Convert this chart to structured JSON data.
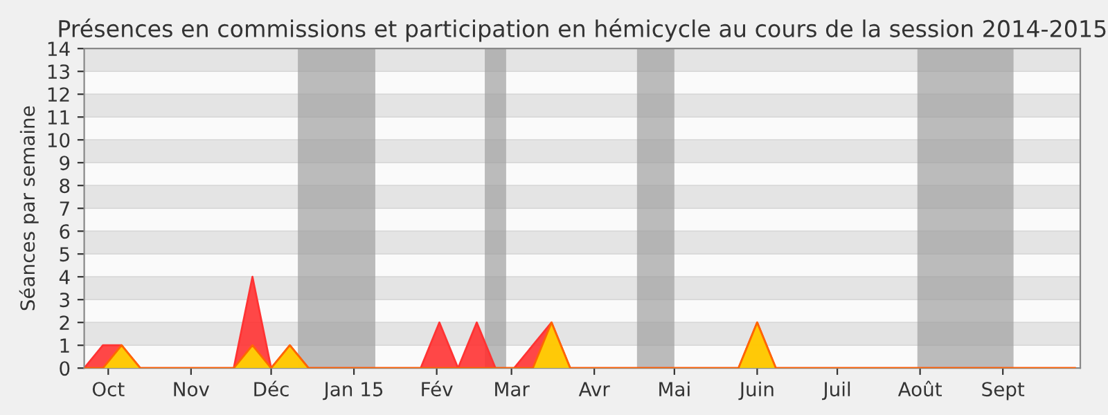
{
  "chart_data": {
    "type": "area",
    "title": "Présences en commissions et participation en hémicycle au cours de la session 2014-2015",
    "ylabel": "Séances par semaine",
    "x": [
      "2014-09-22",
      "2014-09-29",
      "2014-10-06",
      "2014-10-13",
      "2014-10-20",
      "2014-10-27",
      "2014-11-03",
      "2014-11-10",
      "2014-11-17",
      "2014-11-24",
      "2014-12-01",
      "2014-12-08",
      "2014-12-15",
      "2014-12-22",
      "2014-12-29",
      "2015-01-05",
      "2015-01-12",
      "2015-01-19",
      "2015-01-26",
      "2015-02-02",
      "2015-02-09",
      "2015-02-16",
      "2015-02-23",
      "2015-03-02",
      "2015-03-09",
      "2015-03-16",
      "2015-03-23",
      "2015-03-30",
      "2015-04-06",
      "2015-04-13",
      "2015-04-20",
      "2015-04-27",
      "2015-05-04",
      "2015-05-11",
      "2015-05-18",
      "2015-05-25",
      "2015-06-01",
      "2015-06-08",
      "2015-06-15",
      "2015-06-22",
      "2015-06-29",
      "2015-07-06",
      "2015-07-13",
      "2015-07-20",
      "2015-07-27",
      "2015-08-03",
      "2015-08-10",
      "2015-08-17",
      "2015-08-24",
      "2015-08-31",
      "2015-09-07",
      "2015-09-14",
      "2015-09-21",
      "2015-09-28"
    ],
    "series": [
      {
        "color": "#ff3333",
        "values": [
          0,
          1,
          1,
          0,
          0,
          0,
          0,
          0,
          0,
          4,
          0,
          1,
          0,
          0,
          0,
          0,
          0,
          0,
          0,
          2,
          0,
          2,
          0,
          0,
          1,
          2,
          0,
          0,
          0,
          0,
          0,
          0,
          0,
          0,
          0,
          0,
          2,
          0,
          0,
          0,
          0,
          0,
          0,
          0,
          0,
          0,
          0,
          0,
          0,
          0,
          0,
          0,
          0,
          0
        ]
      },
      {
        "color": "#ffd700",
        "values": [
          0,
          0,
          1,
          0,
          0,
          0,
          0,
          0,
          0,
          1,
          0,
          1,
          0,
          0,
          0,
          0,
          0,
          0,
          0,
          0,
          0,
          0,
          0,
          0,
          0,
          2,
          0,
          0,
          0,
          0,
          0,
          0,
          0,
          0,
          0,
          0,
          2,
          0,
          0,
          0,
          0,
          0,
          0,
          0,
          0,
          0,
          0,
          0,
          0,
          0,
          0,
          0,
          0,
          0
        ]
      }
    ],
    "xlim": [
      "2014-09-22",
      "2015-09-30"
    ],
    "ylim": [
      0,
      14
    ],
    "yticks": [
      0,
      1,
      2,
      3,
      4,
      5,
      6,
      7,
      8,
      9,
      10,
      11,
      12,
      13,
      14
    ],
    "xticks": [
      {
        "value": "2014-10-01",
        "label": "Oct"
      },
      {
        "value": "2014-11-01",
        "label": "Nov"
      },
      {
        "value": "2014-12-01",
        "label": "Déc"
      },
      {
        "value": "2015-01-01",
        "label": "Jan 15"
      },
      {
        "value": "2015-02-01",
        "label": "Fév"
      },
      {
        "value": "2015-03-01",
        "label": "Mar"
      },
      {
        "value": "2015-04-01",
        "label": "Avr"
      },
      {
        "value": "2015-05-01",
        "label": "Mai"
      },
      {
        "value": "2015-06-01",
        "label": "Juin"
      },
      {
        "value": "2015-07-01",
        "label": "Juil"
      },
      {
        "value": "2015-08-01",
        "label": "Août"
      },
      {
        "value": "2015-09-01",
        "label": "Sept"
      }
    ],
    "bands": [
      {
        "axis": "x",
        "from": "2014-12-11",
        "to": "2015-01-09",
        "color": "#a0a0a0"
      },
      {
        "axis": "x",
        "from": "2015-02-19",
        "to": "2015-02-27",
        "color": "#a0a0a0"
      },
      {
        "axis": "x",
        "from": "2015-04-17",
        "to": "2015-05-01",
        "color": "#a0a0a0"
      },
      {
        "axis": "x",
        "from": "2015-07-31",
        "to": "2015-09-05",
        "color": "#a0a0a0"
      }
    ],
    "grid": "y"
  }
}
